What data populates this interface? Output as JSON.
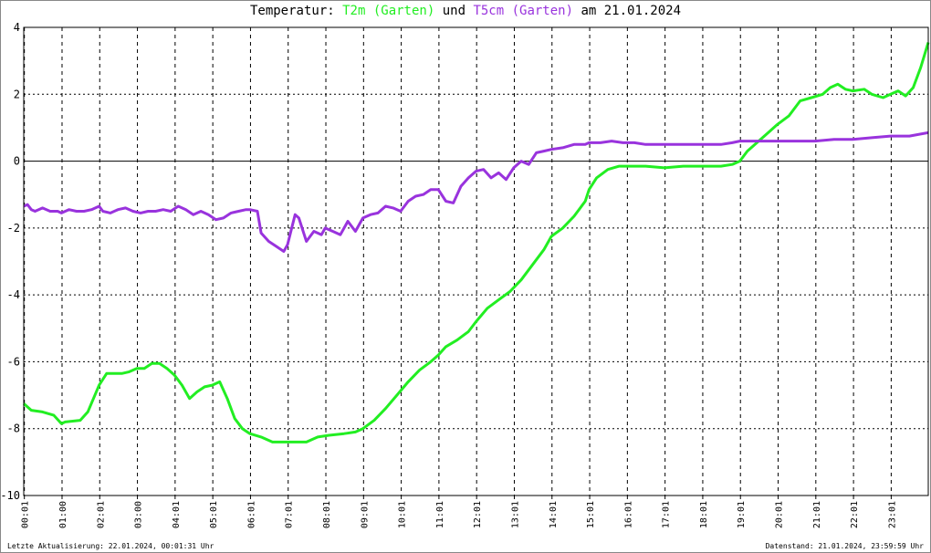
{
  "title": {
    "prefix": "Temperatur: ",
    "series1": "T2m (Garten)",
    "middle": " und ",
    "series2": "T5cm (Garten)",
    "suffix": " am 21.01.2024"
  },
  "footer": {
    "left": "Letzte Aktualisierung: 22.01.2024, 00:01:31 Uhr",
    "right": "Datenstand: 21.01.2024, 23:59:59 Uhr"
  },
  "chart_data": {
    "type": "line",
    "ylim": [
      -10,
      4
    ],
    "xlim": [
      0,
      24
    ],
    "y_ticks": [
      4,
      2,
      0,
      -2,
      -4,
      -6,
      -8,
      -10
    ],
    "y_tick_labels": [
      "4",
      "2",
      "0",
      "-2",
      "-4",
      "-6",
      "-8",
      "-10"
    ],
    "x_ticks": [
      0.0167,
      1.0167,
      2.0167,
      3.0167,
      4.0167,
      5.0167,
      6.0167,
      7.0167,
      8.0167,
      9.0167,
      10.0167,
      11.0167,
      12.0167,
      13.0167,
      14.0167,
      15.0167,
      16.0167,
      17.0167,
      18.0167,
      19.0167,
      20.0167,
      21.0167,
      22.0167,
      23.0167
    ],
    "x_tick_labels": [
      "00:01",
      "01:00",
      "02:01",
      "03:00",
      "04:01",
      "05:01",
      "06:01",
      "07:01",
      "08:01",
      "09:01",
      "10:01",
      "11:01",
      "12:01",
      "13:01",
      "14:01",
      "15:01",
      "16:01",
      "17:01",
      "18:01",
      "19:01",
      "20:01",
      "21:01",
      "22:01",
      "23:01"
    ],
    "grid": true,
    "colors": {
      "series1": "#22ee22",
      "series2": "#9933dd"
    },
    "series": [
      {
        "name": "T2m (Garten)",
        "color": "#22ee22",
        "x": [
          0,
          0.2,
          0.5,
          0.8,
          1.0,
          1.1,
          1.5,
          1.7,
          2.0,
          2.2,
          2.4,
          2.6,
          2.8,
          3.0,
          3.2,
          3.4,
          3.6,
          3.8,
          4.0,
          4.2,
          4.4,
          4.6,
          4.8,
          5.0,
          5.2,
          5.4,
          5.6,
          5.8,
          6.0,
          6.3,
          6.6,
          6.9,
          7.2,
          7.5,
          7.8,
          8.1,
          8.5,
          8.8,
          9.0,
          9.3,
          9.6,
          9.9,
          10.2,
          10.5,
          10.8,
          11.0,
          11.2,
          11.5,
          11.8,
          12.0,
          12.3,
          12.6,
          12.9,
          13.2,
          13.5,
          13.8,
          14.0,
          14.3,
          14.6,
          14.9,
          15.0,
          15.2,
          15.5,
          15.8,
          16.0,
          16.5,
          17.0,
          17.5,
          18.0,
          18.5,
          18.8,
          19.0,
          19.2,
          19.5,
          19.8,
          20.0,
          20.3,
          20.6,
          20.9,
          21.2,
          21.4,
          21.6,
          21.8,
          22.0,
          22.3,
          22.5,
          22.8,
          23.0,
          23.2,
          23.4,
          23.6,
          23.8,
          24.0
        ],
        "y": [
          -7.25,
          -7.45,
          -7.5,
          -7.6,
          -7.85,
          -7.8,
          -7.75,
          -7.5,
          -6.7,
          -6.35,
          -6.35,
          -6.35,
          -6.3,
          -6.2,
          -6.2,
          -6.05,
          -6.05,
          -6.2,
          -6.4,
          -6.7,
          -7.1,
          -6.9,
          -6.75,
          -6.7,
          -6.6,
          -7.1,
          -7.7,
          -8.0,
          -8.15,
          -8.25,
          -8.4,
          -8.4,
          -8.4,
          -8.4,
          -8.25,
          -8.2,
          -8.15,
          -8.1,
          -8.0,
          -7.75,
          -7.4,
          -7.0,
          -6.6,
          -6.25,
          -6.0,
          -5.8,
          -5.55,
          -5.35,
          -5.1,
          -4.8,
          -4.4,
          -4.15,
          -3.9,
          -3.55,
          -3.1,
          -2.65,
          -2.25,
          -2.0,
          -1.65,
          -1.2,
          -0.85,
          -0.5,
          -0.25,
          -0.15,
          -0.15,
          -0.15,
          -0.2,
          -0.15,
          -0.15,
          -0.15,
          -0.1,
          0.0,
          0.3,
          0.6,
          0.9,
          1.1,
          1.35,
          1.8,
          1.9,
          2.0,
          2.2,
          2.3,
          2.15,
          2.1,
          2.15,
          2.0,
          1.9,
          2.0,
          2.1,
          1.95,
          2.2,
          2.8,
          3.55
        ]
      },
      {
        "name": "T5cm (Garten)",
        "color": "#9933dd",
        "x": [
          0,
          0.1,
          0.2,
          0.3,
          0.5,
          0.7,
          0.9,
          1.0,
          1.2,
          1.4,
          1.6,
          1.8,
          2.0,
          2.1,
          2.3,
          2.5,
          2.7,
          2.9,
          3.1,
          3.3,
          3.5,
          3.7,
          3.9,
          4.1,
          4.3,
          4.5,
          4.7,
          4.9,
          5.1,
          5.3,
          5.5,
          5.7,
          5.9,
          6.0,
          6.2,
          6.3,
          6.5,
          6.7,
          6.9,
          7.0,
          7.2,
          7.3,
          7.5,
          7.7,
          7.9,
          8.0,
          8.2,
          8.4,
          8.6,
          8.8,
          9.0,
          9.2,
          9.4,
          9.6,
          9.8,
          10.0,
          10.2,
          10.4,
          10.6,
          10.8,
          11.0,
          11.2,
          11.4,
          11.6,
          11.8,
          12.0,
          12.2,
          12.4,
          12.6,
          12.8,
          13.0,
          13.2,
          13.4,
          13.6,
          13.8,
          14.0,
          14.3,
          14.6,
          14.9,
          15.0,
          15.3,
          15.6,
          15.9,
          16.2,
          16.5,
          17.0,
          17.5,
          18.0,
          18.5,
          18.8,
          19.0,
          19.5,
          20.0,
          20.5,
          21.0,
          21.5,
          22.0,
          22.5,
          23.0,
          23.5,
          24.0
        ],
        "y": [
          -1.35,
          -1.3,
          -1.45,
          -1.5,
          -1.4,
          -1.5,
          -1.5,
          -1.55,
          -1.45,
          -1.5,
          -1.5,
          -1.45,
          -1.35,
          -1.5,
          -1.55,
          -1.45,
          -1.4,
          -1.5,
          -1.55,
          -1.5,
          -1.5,
          -1.45,
          -1.5,
          -1.35,
          -1.45,
          -1.6,
          -1.5,
          -1.6,
          -1.75,
          -1.7,
          -1.55,
          -1.5,
          -1.45,
          -1.45,
          -1.5,
          -2.15,
          -2.4,
          -2.55,
          -2.7,
          -2.5,
          -1.6,
          -1.7,
          -2.4,
          -2.1,
          -2.2,
          -2.0,
          -2.1,
          -2.2,
          -1.8,
          -2.1,
          -1.7,
          -1.6,
          -1.55,
          -1.35,
          -1.4,
          -1.5,
          -1.2,
          -1.05,
          -1.0,
          -0.85,
          -0.85,
          -1.2,
          -1.25,
          -0.75,
          -0.5,
          -0.3,
          -0.25,
          -0.5,
          -0.35,
          -0.55,
          -0.2,
          0.0,
          -0.1,
          0.25,
          0.3,
          0.35,
          0.4,
          0.5,
          0.5,
          0.55,
          0.55,
          0.6,
          0.55,
          0.55,
          0.5,
          0.5,
          0.5,
          0.5,
          0.5,
          0.55,
          0.6,
          0.6,
          0.6,
          0.6,
          0.6,
          0.65,
          0.65,
          0.7,
          0.75,
          0.75,
          0.85
        ]
      }
    ]
  }
}
